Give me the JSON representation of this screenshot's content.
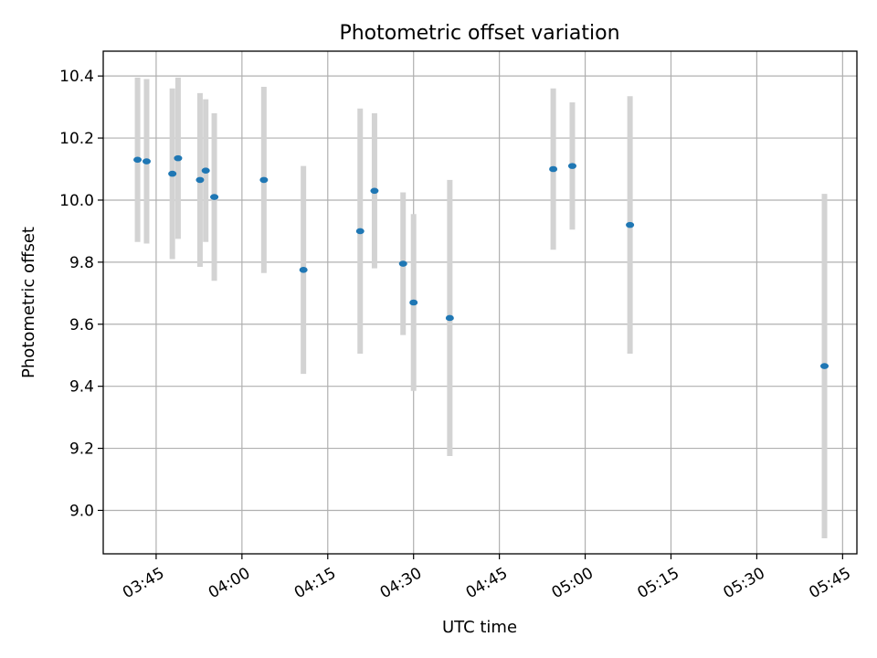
{
  "chart_data": {
    "type": "scatter",
    "title": "Photometric offset variation",
    "xlabel": "UTC time",
    "ylabel": "Photometric offset",
    "xlim": [
      "03:35:45",
      "05:47:30"
    ],
    "ylim": [
      8.86,
      10.48
    ],
    "xticks": [
      "03:45",
      "04:00",
      "04:15",
      "04:30",
      "04:45",
      "05:00",
      "05:15",
      "05:30",
      "05:45"
    ],
    "yticks": [
      "9.0",
      "9.2",
      "9.4",
      "9.6",
      "9.8",
      "10.0",
      "10.2",
      "10.4"
    ],
    "grid": true,
    "colors": {
      "marker": "#1f77b4",
      "errorbar": "#d3d3d3"
    },
    "points": [
      {
        "time": "03:41:45",
        "y": 10.13,
        "err": 0.265
      },
      {
        "time": "03:43:20",
        "y": 10.125,
        "err": 0.265
      },
      {
        "time": "03:47:50",
        "y": 10.085,
        "err": 0.275
      },
      {
        "time": "03:48:50",
        "y": 10.135,
        "err": 0.26
      },
      {
        "time": "03:52:40",
        "y": 10.065,
        "err": 0.28
      },
      {
        "time": "03:53:40",
        "y": 10.095,
        "err": 0.23
      },
      {
        "time": "03:55:10",
        "y": 10.01,
        "err": 0.27
      },
      {
        "time": "04:03:50",
        "y": 10.065,
        "err": 0.3
      },
      {
        "time": "04:10:45",
        "y": 9.775,
        "err": 0.335
      },
      {
        "time": "04:20:40",
        "y": 9.9,
        "err": 0.395
      },
      {
        "time": "04:23:10",
        "y": 10.03,
        "err": 0.25
      },
      {
        "time": "04:28:10",
        "y": 9.795,
        "err": 0.23
      },
      {
        "time": "04:30:00",
        "y": 9.67,
        "err": 0.285
      },
      {
        "time": "04:36:20",
        "y": 9.62,
        "err": 0.445
      },
      {
        "time": "04:54:25",
        "y": 10.1,
        "err": 0.26
      },
      {
        "time": "04:57:45",
        "y": 10.11,
        "err": 0.205
      },
      {
        "time": "05:07:50",
        "y": 9.92,
        "err": 0.415
      },
      {
        "time": "05:41:50",
        "y": 9.465,
        "err": 0.555
      }
    ]
  }
}
